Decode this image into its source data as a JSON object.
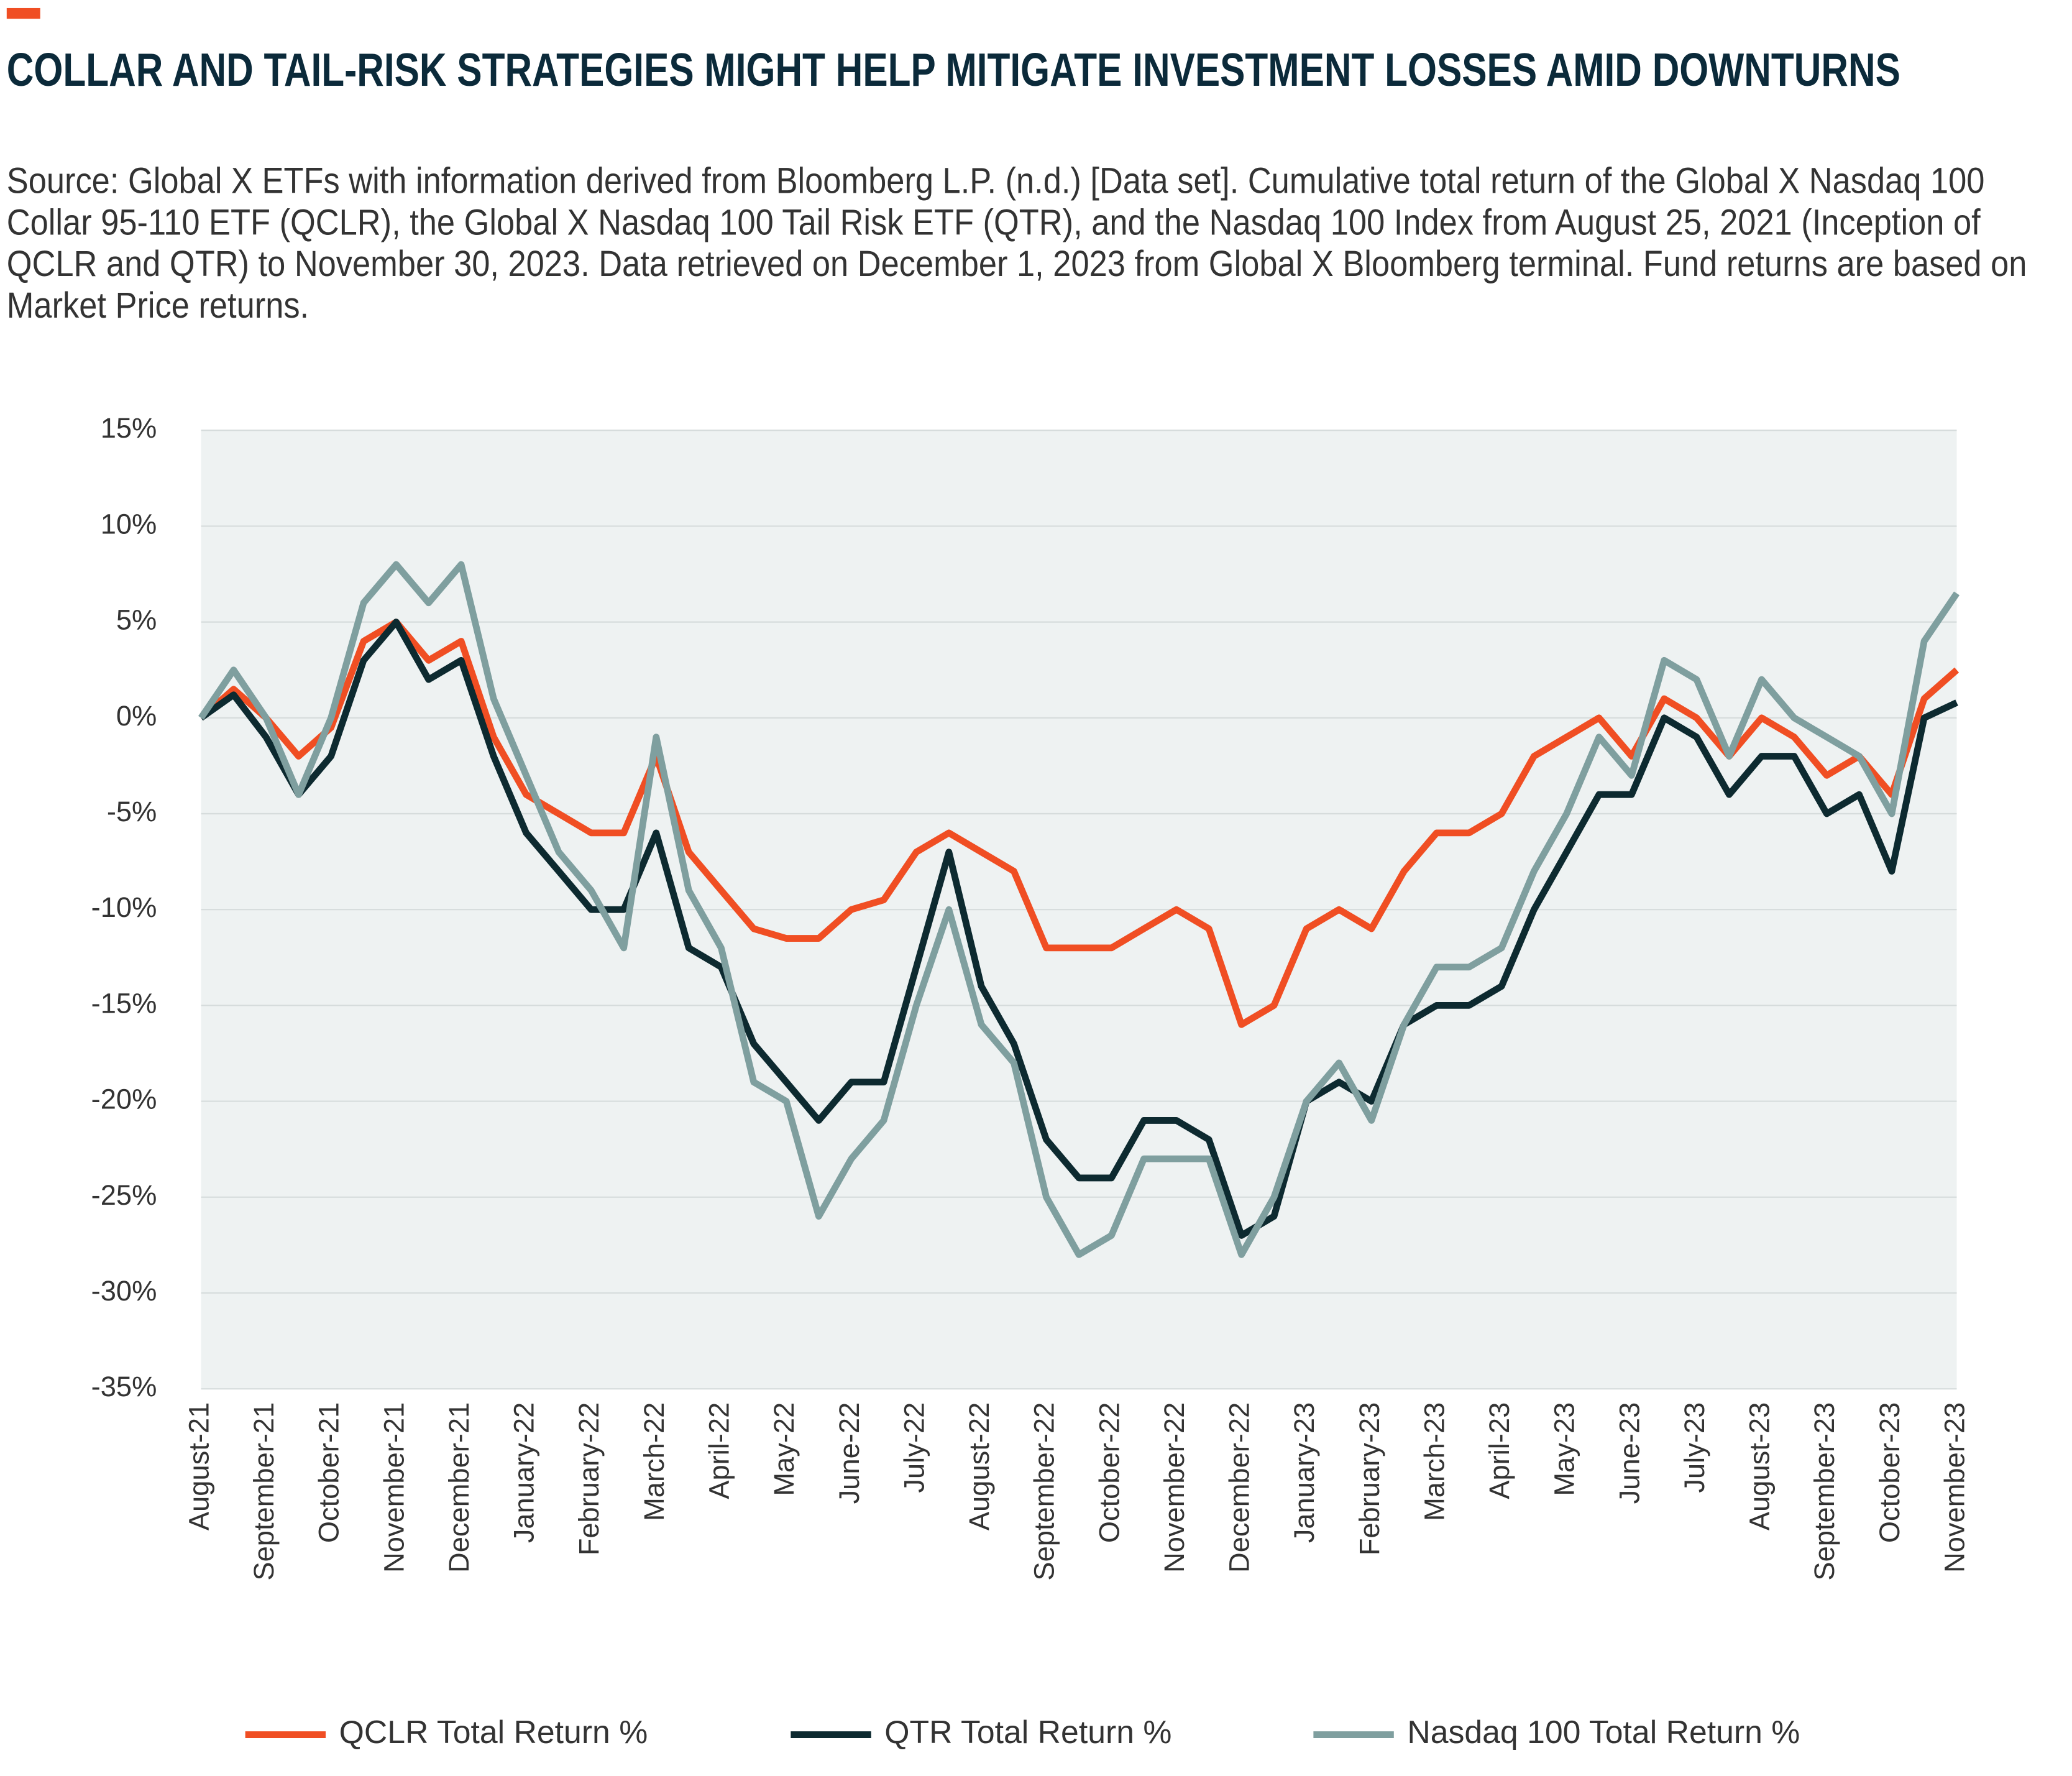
{
  "chart_data": {
    "type": "line",
    "title": "COLLAR AND TAIL-RISK STRATEGIES MIGHT HELP MITIGATE INVESTMENT LOSSES AMID DOWNTURNS",
    "subtitle": "Source: Global X ETFs with information derived from Bloomberg L.P. (n.d.) [Data set]. Cumulative total return of the Global X Nasdaq 100 Collar 95-110 ETF (QCLR), the Global X Nasdaq 100 Tail Risk ETF (QTR), and the Nasdaq 100 Index from August 25, 2021 (Inception of QCLR and QTR) to November 30, 2023. Data retrieved on December 1, 2023 from Global X Bloomberg terminal. Fund returns are based on Market Price returns.",
    "categories": [
      "August-21",
      null,
      "September-21",
      null,
      "October-21",
      null,
      "November-21",
      null,
      "December-21",
      null,
      "January-22",
      null,
      "February-22",
      null,
      "March-22",
      null,
      "April-22",
      null,
      "May-22",
      null,
      "June-22",
      null,
      "July-22",
      null,
      "August-22",
      null,
      "September-22",
      null,
      "October-22",
      null,
      "November-22",
      null,
      "December-22",
      null,
      "January-23",
      null,
      "February-23",
      null,
      "March-23",
      null,
      "April-23",
      null,
      "May-23",
      null,
      "June-23",
      null,
      "July-23",
      null,
      "August-23",
      null,
      "September-23",
      null,
      "October-23",
      null,
      "November-23"
    ],
    "series": [
      {
        "name": "QCLR Total Return %",
        "color": "#f04e23",
        "values": [
          0,
          1.5,
          0,
          -2,
          -0.5,
          4,
          5,
          3,
          4,
          -1,
          -4,
          -5,
          -6,
          -6,
          -2,
          -7,
          -9,
          -11,
          -11.5,
          -11.5,
          -10,
          -9.5,
          -7,
          -6,
          -7,
          -8,
          -12,
          -12,
          -12,
          -11,
          -10,
          -11,
          -16,
          -15,
          -11,
          -10,
          -11,
          -8,
          -6,
          -6,
          -5,
          -2,
          -1,
          0,
          -2,
          1,
          0,
          -2,
          0,
          -1,
          -3,
          -2,
          -4,
          1,
          2.5
        ]
      },
      {
        "name": "QTR Total Return %",
        "color": "#0d2a30",
        "values": [
          0,
          1.2,
          -1,
          -4,
          -2,
          3,
          5,
          2,
          3,
          -2,
          -6,
          -8,
          -10,
          -10,
          -6,
          -12,
          -13,
          -17,
          -19,
          -21,
          -19,
          -19,
          -13,
          -7,
          -14,
          -17,
          -22,
          -24,
          -24,
          -21,
          -21,
          -22,
          -27,
          -26,
          -20,
          -19,
          -20,
          -16,
          -15,
          -15,
          -14,
          -10,
          -7,
          -4,
          -4,
          0,
          -1,
          -4,
          -2,
          -2,
          -5,
          -4,
          -8,
          0,
          0.8
        ]
      },
      {
        "name": "Nasdaq 100 Total Return %",
        "color": "#7f9f9f",
        "values": [
          0,
          2.5,
          0,
          -4,
          0,
          6,
          8,
          6,
          8,
          1,
          -3,
          -7,
          -9,
          -12,
          -1,
          -9,
          -12,
          -19,
          -20,
          -26,
          -23,
          -21,
          -15,
          -10,
          -16,
          -18,
          -25,
          -28,
          -27,
          -23,
          -23,
          -23,
          -28,
          -25,
          -20,
          -18,
          -21,
          -16,
          -13,
          -13,
          -12,
          -8,
          -5,
          -1,
          -3,
          3,
          2,
          -2,
          2,
          0,
          -1,
          -2,
          -5,
          4,
          6.5
        ]
      }
    ],
    "ylim": [
      -35,
      15
    ],
    "yticks": [
      {
        "value": -35,
        "label": "-35%"
      },
      {
        "value": -30,
        "label": "-30%"
      },
      {
        "value": -25,
        "label": "-25%"
      },
      {
        "value": -20,
        "label": "-20%"
      },
      {
        "value": -15,
        "label": "-15%"
      },
      {
        "value": -10,
        "label": "-10%"
      },
      {
        "value": -5,
        "label": "-5%"
      },
      {
        "value": 0,
        "label": "0%"
      },
      {
        "value": 5,
        "label": "5%"
      },
      {
        "value": 10,
        "label": "10%"
      },
      {
        "value": 15,
        "label": "15%"
      }
    ],
    "grid": true,
    "legend": "bottom"
  }
}
